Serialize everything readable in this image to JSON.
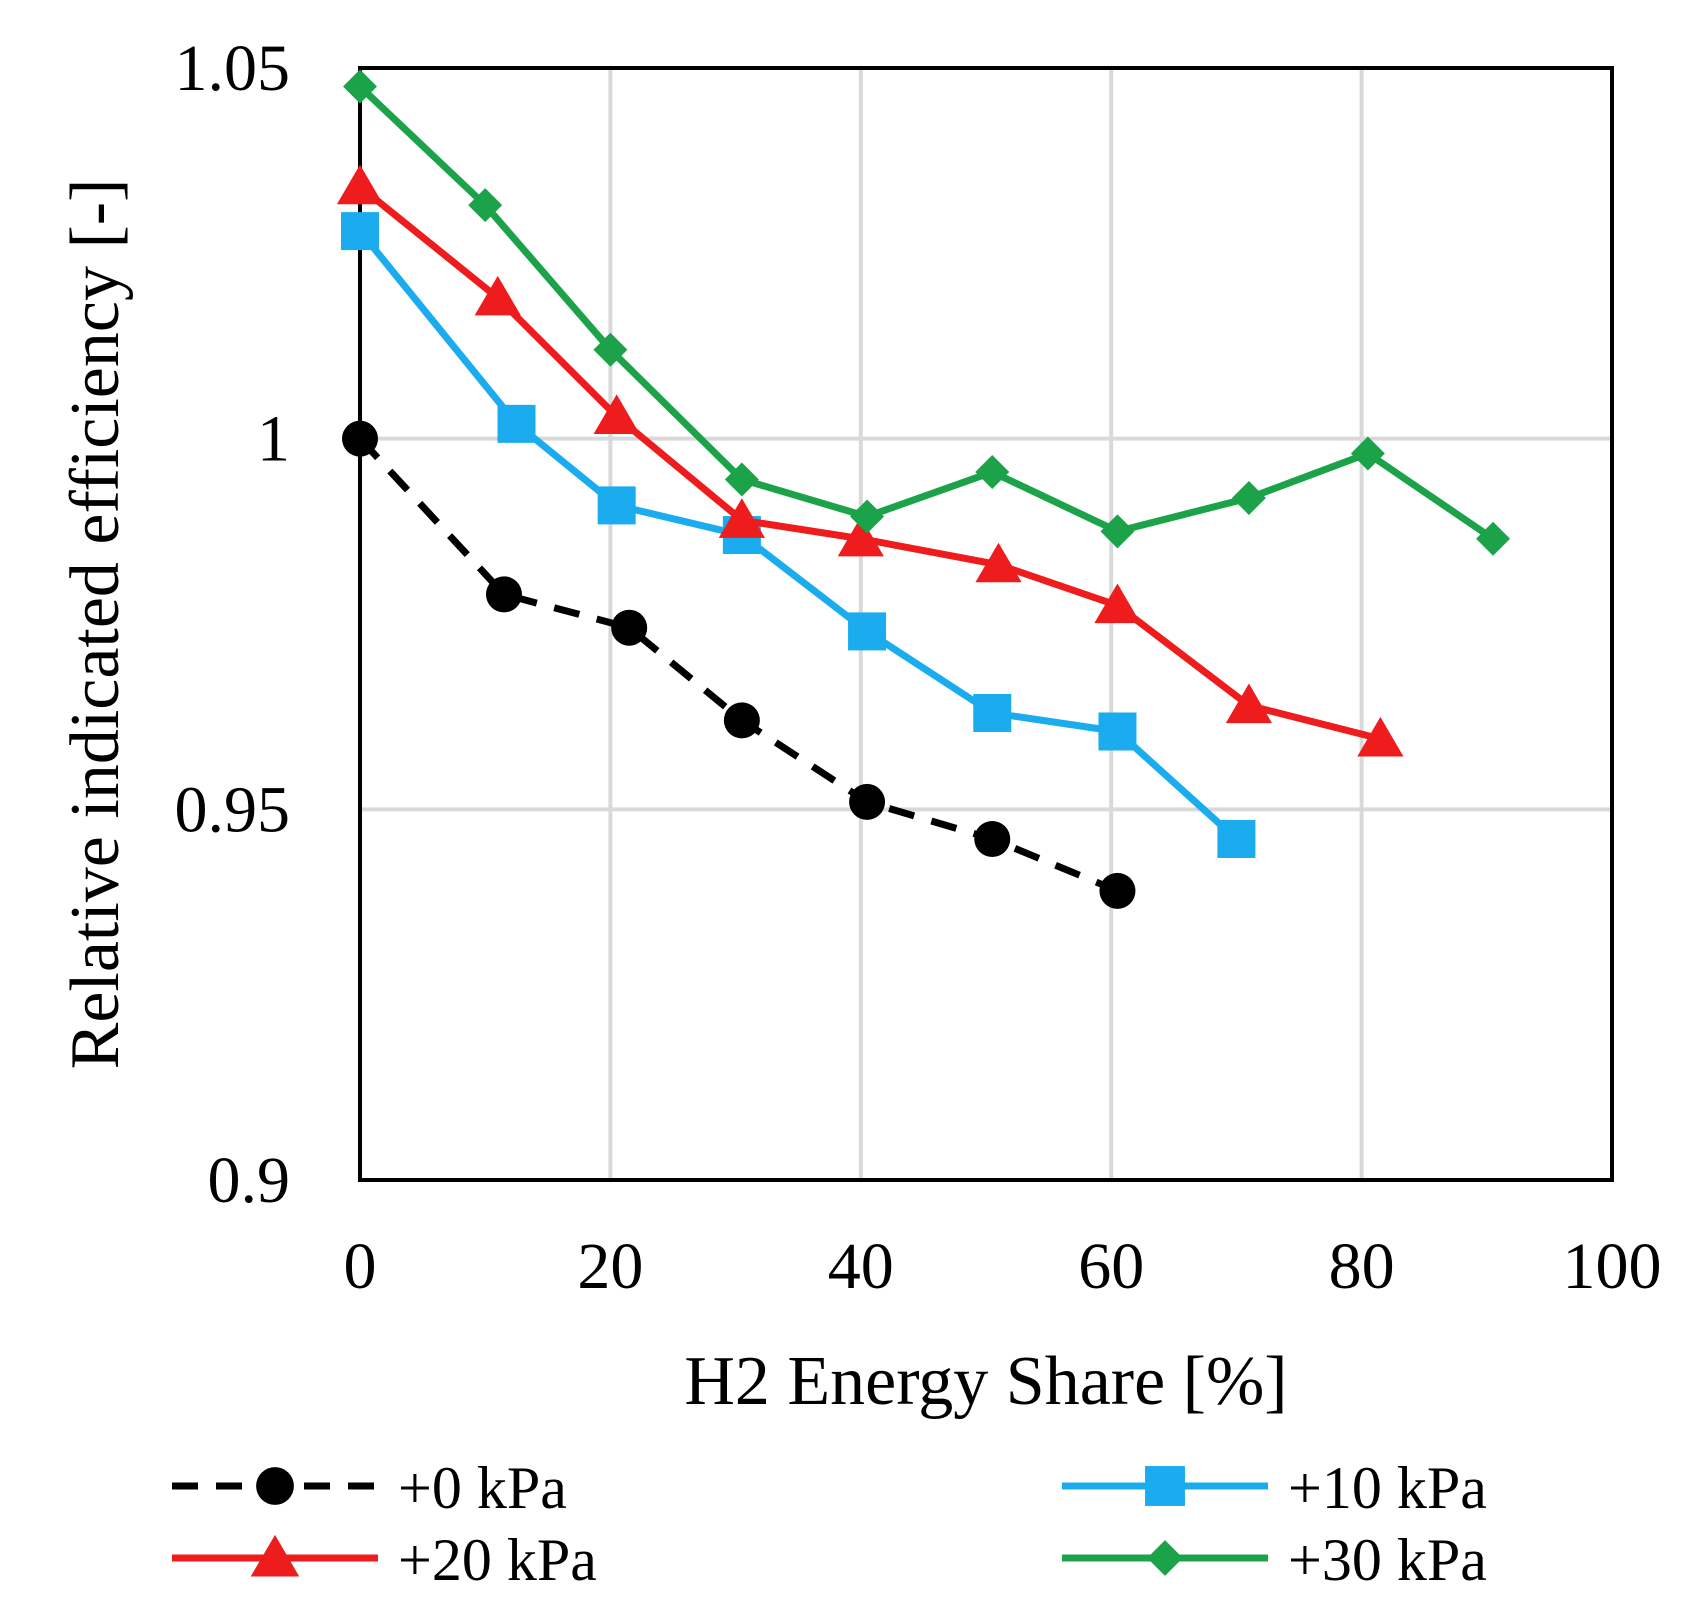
{
  "chart_data": {
    "type": "line",
    "title": "",
    "xlabel": "H2 Energy Share [%]",
    "ylabel": "Relative indicated efficiency [-]",
    "xlim": [
      0,
      100
    ],
    "ylim": [
      0.9,
      1.05
    ],
    "x_ticks": [
      0,
      20,
      40,
      60,
      80,
      100
    ],
    "x_tick_labels": [
      "0",
      "20",
      "40",
      "60",
      "80",
      "100"
    ],
    "y_ticks": [
      0.9,
      0.95,
      1.0,
      1.05
    ],
    "y_tick_labels": [
      "0.9",
      "0.95",
      "1",
      "1.05"
    ],
    "grid": true,
    "legend_position": "bottom",
    "series": [
      {
        "name": "+0 kPa",
        "color": "#000000",
        "dashed": true,
        "marker": "circle",
        "x": [
          0,
          11.5,
          21.5,
          30.5,
          40.5,
          50.5,
          60.5
        ],
        "y": [
          1.0,
          0.979,
          0.9745,
          0.962,
          0.951,
          0.946,
          0.939
        ]
      },
      {
        "name": "+10 kPa",
        "color": "#1AACEF",
        "dashed": false,
        "marker": "square",
        "x": [
          0,
          12.5,
          20.5,
          30.5,
          40.5,
          50.5,
          60.5,
          70
        ],
        "y": [
          1.028,
          1.002,
          0.991,
          0.987,
          0.974,
          0.963,
          0.9605,
          0.946
        ]
      },
      {
        "name": "+20 kPa",
        "color": "#EE1C1C",
        "dashed": false,
        "marker": "triangle",
        "x": [
          0,
          11,
          20.5,
          30.5,
          40,
          51,
          60.5,
          71,
          81.5
        ],
        "y": [
          1.034,
          1.019,
          1.003,
          0.989,
          0.9865,
          0.983,
          0.9775,
          0.964,
          0.9595
        ]
      },
      {
        "name": "+30 kPa",
        "color": "#1CA34A",
        "dashed": false,
        "marker": "diamond",
        "x": [
          0,
          10,
          20,
          30.5,
          40.5,
          50.5,
          60.5,
          71,
          80.5,
          90.5
        ],
        "y": [
          1.0475,
          1.0315,
          1.012,
          0.9945,
          0.9895,
          0.9955,
          0.9875,
          0.992,
          0.998,
          0.9865
        ]
      }
    ]
  }
}
